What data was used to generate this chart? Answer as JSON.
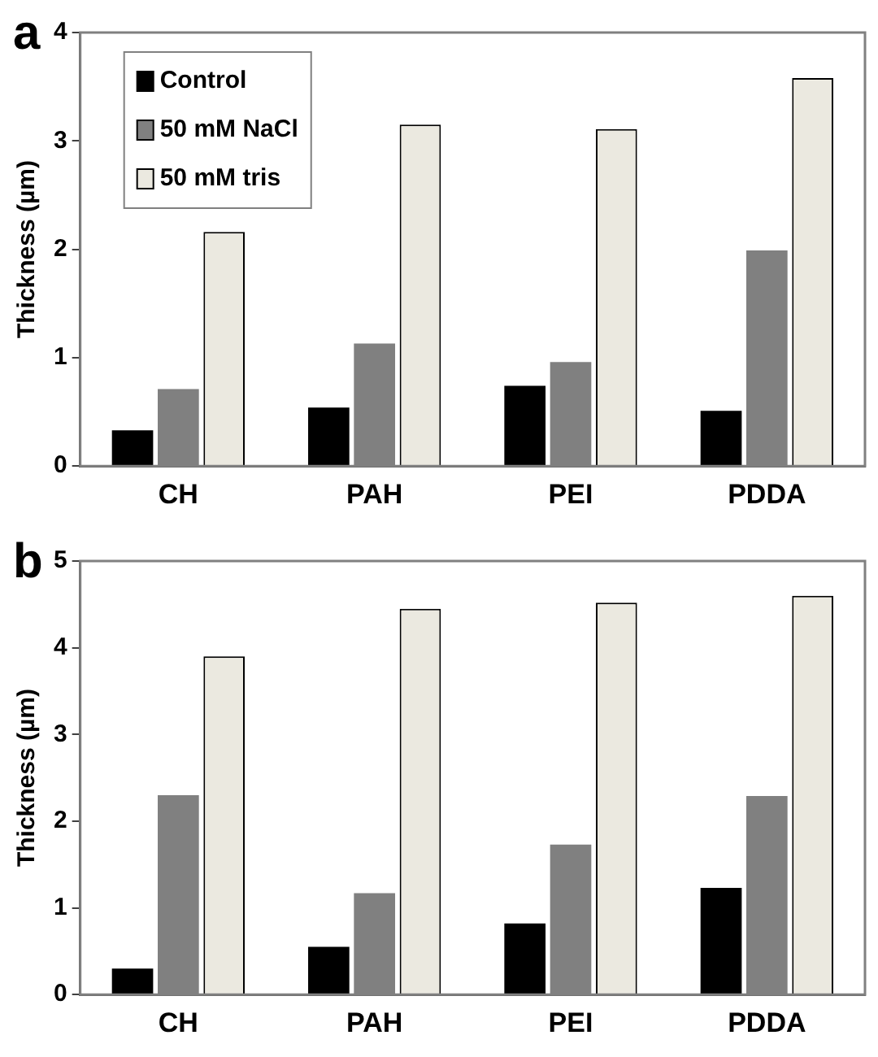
{
  "chart_data": [
    {
      "type": "bar",
      "title": "a",
      "ylabel": "Thickness (µm)",
      "categories": [
        "CH",
        "PAH",
        "PEI",
        "PDDA"
      ],
      "ylim": [
        0,
        4
      ],
      "yticks": [
        0,
        1,
        2,
        3,
        4
      ],
      "grid": false,
      "legend": "top left",
      "series": [
        {
          "name": "Control",
          "color": "#000000",
          "values": [
            0.33,
            0.54,
            0.74,
            0.51
          ]
        },
        {
          "name": "50 mM NaCl",
          "color": "#808080",
          "values": [
            0.71,
            1.13,
            0.96,
            1.99
          ]
        },
        {
          "name": "50 mM tris",
          "color": "#ebe9e0",
          "values": [
            2.16,
            3.15,
            3.11,
            3.58
          ]
        }
      ]
    },
    {
      "type": "bar",
      "title": "b",
      "ylabel": "Thickness (µm)",
      "categories": [
        "CH",
        "PAH",
        "PEI",
        "PDDA"
      ],
      "ylim": [
        0,
        5
      ],
      "yticks": [
        0,
        1,
        2,
        3,
        4,
        5
      ],
      "grid": false,
      "legend": false,
      "series": [
        {
          "color": "#000000",
          "values": [
            0.3,
            0.55,
            0.82,
            1.23
          ]
        },
        {
          "color": "#808080",
          "values": [
            2.3,
            1.17,
            1.73,
            2.29
          ]
        },
        {
          "color": "#ebe9e0",
          "values": [
            3.9,
            4.45,
            4.52,
            4.6
          ]
        }
      ]
    }
  ]
}
